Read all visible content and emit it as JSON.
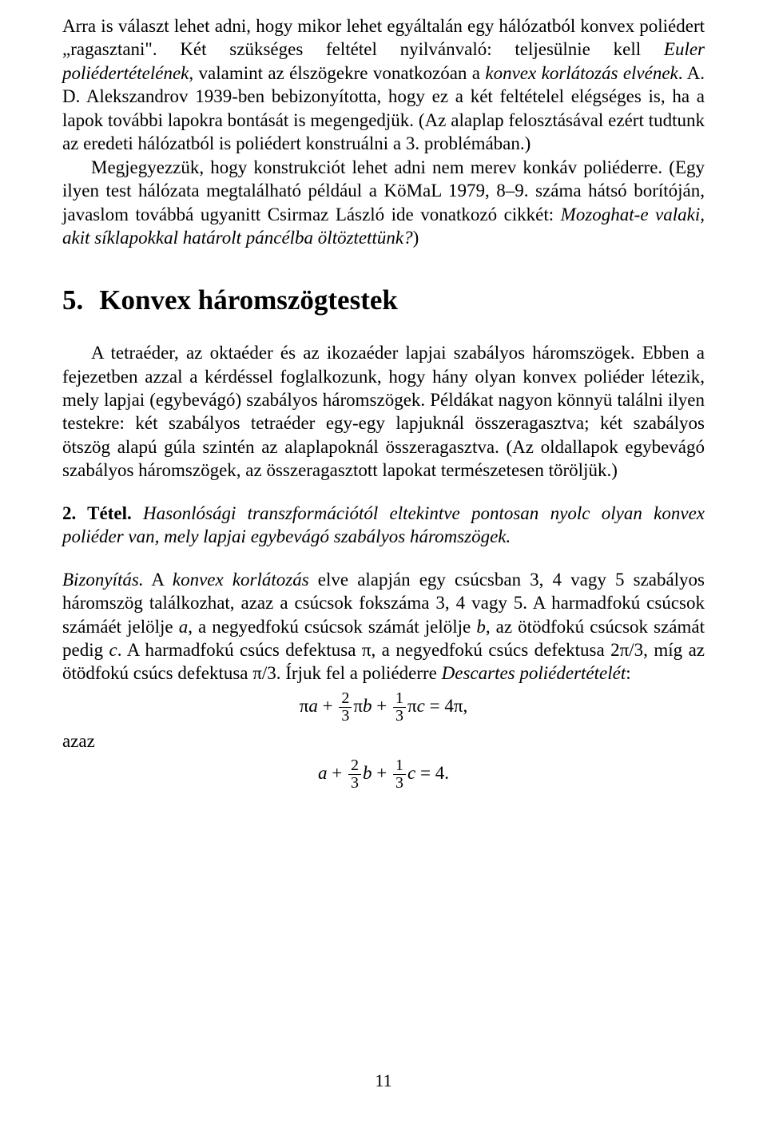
{
  "para1_part1": "Arra is választ lehet adni, hogy mikor lehet egyáltalán egy hálózatból konvex poliédert „ragasztani\". Két szükséges feltétel nyilvánvaló: teljesülnie kell ",
  "para1_euler": "Euler poliédertételének",
  "para1_part2": ", valamint az élszögekre vonatkozóan a ",
  "para1_konvex": "konvex korlátozás elvének",
  "para1_part3": ". A. D. Alekszandrov 1939-ben bebizonyította, hogy ez a két feltételel elégséges is, ha a lapok további lapokra bontását is megengedjük. (Az alaplap felosztásával ezért tudtunk az eredeti hálózatból is poliédert konstruálni a 3. problémában.)",
  "para2_part1": "Megjegyezzük, hogy konstrukciót lehet adni nem merev konkáv poliéderre. (Egy ilyen test hálózata megtalálható például a KöMaL 1979, 8–9. száma hátsó borítóján, javaslom továbbá ugyanitt Csirmaz László ide vonatkozó cikkét: ",
  "para2_italic": "Mozoghat-e valaki, akit síklapokkal határolt páncélba öltöztettünk?",
  "para2_part2": ")",
  "section_number": "5.",
  "section_title": "Konvex háromszögtestek",
  "para3": "A tetraéder, az oktaéder és az ikozaéder lapjai szabályos háromszögek. Ebben a fejezetben azzal a kérdéssel foglalkozunk, hogy hány olyan konvex poliéder létezik, mely lapjai (egybevágó) szabályos háromszögek. Példákat nagyon könnyü találni ilyen testekre: két szabályos tetraéder egy-egy lapjuknál összeragasztva; két szabályos ötszög alapú gúla szintén az alaplapoknál összeragasztva. (Az oldallapok egybevágó szabályos háromszögek, az összeragasztott lapokat természetesen töröljük.)",
  "theorem_label": "2. Tétel.",
  "theorem_text": "Hasonlósági transzformációtól eltekintve pontosan nyolc olyan konvex poliéder van, mely lapjai egybevágó szabályos háromszögek.",
  "proof_label": "Bizonyítás.",
  "proof_part1": " A ",
  "proof_italic1": "konvex korlátozás",
  "proof_part2": " elve alapján egy csúcsban 3, 4 vagy 5 szabályos háromszög találkozhat, azaz a csúcsok fokszáma 3, 4 vagy 5. A harmadfokú csúcsok számáét jelölje ",
  "proof_var_a": "a",
  "proof_part3": ", a negyedfokú csúcsok számát jelölje ",
  "proof_var_b": "b",
  "proof_part4": ", az ötödfokú csúcsok számát pedig ",
  "proof_var_c": "c",
  "proof_part5": ". A harmadfokú csúcs defektusa π, a negyedfokú csúcs defektusa 2π/3, míg az ötödfokú csúcs defektusa π/3. Írjuk fel a poliéderre ",
  "proof_italic2": "Descartes poliédertételét",
  "proof_part6": ":",
  "azaz_label": "azaz",
  "page_number": "11",
  "eq1": {
    "frac1_num": "2",
    "frac1_den": "3",
    "frac2_num": "1",
    "frac2_den": "3",
    "pi": "π",
    "a": "a",
    "b": "b",
    "c": "c",
    "plus": " + ",
    "eq": " = ",
    "rhs": "4π,"
  },
  "eq2": {
    "frac1_num": "2",
    "frac1_den": "3",
    "frac2_num": "1",
    "frac2_den": "3",
    "a": "a",
    "b": "b",
    "c": "c",
    "plus": " + ",
    "eq": " = ",
    "rhs": "4."
  }
}
